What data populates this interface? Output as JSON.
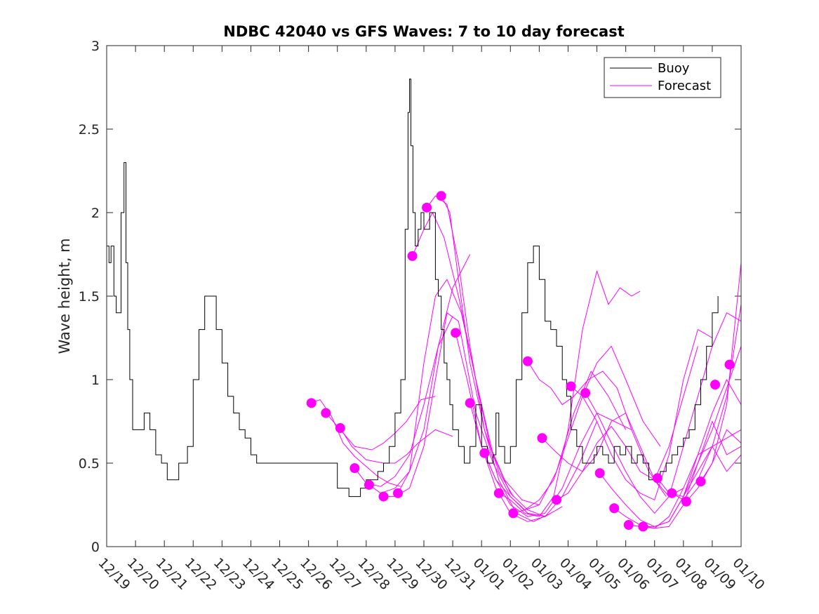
{
  "chart_data": {
    "type": "line",
    "title": "NDBC 42040 vs GFS Waves: 7 to 10 day forecast",
    "xlabel": "",
    "ylabel": "Wave height, m",
    "xlim": [
      0,
      22
    ],
    "ylim": [
      0,
      3
    ],
    "x_tick_labels": [
      "12/19",
      "12/20",
      "12/21",
      "12/22",
      "12/23",
      "12/24",
      "12/25",
      "12/26",
      "12/27",
      "12/28",
      "12/29",
      "12/30",
      "12/31",
      "01/01",
      "01/02",
      "01/03",
      "01/04",
      "01/05",
      "01/06",
      "01/07",
      "01/08",
      "01/09",
      "01/10"
    ],
    "y_ticks": [
      0,
      0.5,
      1,
      1.5,
      2,
      2.5,
      3
    ],
    "y_tick_labels": [
      "0",
      "0.5",
      "1",
      "1.5",
      "2",
      "2.5",
      "3"
    ],
    "legend": {
      "position": "top-right",
      "entries": [
        {
          "label": "Buoy",
          "color": "#000000"
        },
        {
          "label": "Forecast",
          "color": "#ff00ff"
        }
      ]
    },
    "colors": {
      "buoy": "#000000",
      "forecast": "#ff00ff",
      "axis": "#262626"
    },
    "buoy": {
      "x": [
        0,
        0.08,
        0.15,
        0.25,
        0.33,
        0.42,
        0.5,
        0.6,
        0.67,
        0.73,
        0.8,
        0.9,
        1.0,
        1.1,
        1.3,
        1.5,
        1.7,
        1.9,
        2.1,
        2.3,
        2.5,
        2.8,
        3.0,
        3.2,
        3.4,
        3.6,
        3.8,
        4.0,
        4.2,
        4.4,
        4.6,
        4.8,
        5.0,
        5.2,
        5.4,
        5.6,
        5.8,
        6.0,
        6.2,
        6.4,
        6.6,
        6.8,
        7.0,
        7.3,
        7.6,
        8.0,
        8.4,
        8.8,
        9.0,
        9.2,
        9.4,
        9.6,
        9.8,
        10.0,
        10.2,
        10.35,
        10.45,
        10.5,
        10.55,
        10.62,
        10.7,
        10.8,
        10.9,
        11.0,
        11.2,
        11.4,
        11.5,
        11.6,
        11.7,
        11.8,
        11.9,
        12.0,
        12.2,
        12.4,
        12.6,
        12.8,
        13.0,
        13.2,
        13.4,
        13.5,
        13.6,
        13.8,
        14.0,
        14.2,
        14.4,
        14.6,
        14.8,
        15.0,
        15.2,
        15.4,
        15.6,
        15.8,
        15.95,
        16.1,
        16.3,
        16.5,
        16.7,
        16.9,
        17.0,
        17.2,
        17.4,
        17.6,
        17.8,
        18.0,
        18.2,
        18.4,
        18.6,
        18.8,
        19.0,
        19.2,
        19.4,
        19.6,
        19.8,
        20.0,
        20.2,
        20.4,
        20.6,
        20.8,
        21.0,
        21.2
      ],
      "y": [
        1.8,
        1.7,
        1.8,
        1.5,
        1.4,
        1.4,
        2.0,
        2.3,
        1.7,
        1.3,
        1.0,
        0.7,
        0.7,
        0.7,
        0.8,
        0.7,
        0.55,
        0.5,
        0.4,
        0.4,
        0.5,
        0.6,
        1.0,
        1.3,
        1.5,
        1.5,
        1.3,
        1.1,
        0.9,
        0.8,
        0.7,
        0.65,
        0.55,
        0.5,
        0.5,
        0.5,
        0.5,
        0.5,
        0.5,
        0.5,
        0.5,
        0.5,
        0.5,
        0.5,
        0.5,
        0.35,
        0.3,
        0.35,
        0.4,
        0.4,
        0.45,
        0.5,
        0.6,
        0.8,
        1.0,
        1.9,
        2.6,
        2.8,
        2.4,
        2.0,
        1.8,
        1.9,
        2.0,
        1.9,
        2.0,
        1.6,
        1.5,
        1.3,
        1.1,
        1.0,
        0.85,
        0.7,
        0.6,
        0.5,
        0.6,
        0.85,
        0.6,
        0.5,
        0.55,
        0.8,
        0.6,
        0.5,
        0.6,
        1.0,
        1.4,
        1.7,
        1.8,
        1.6,
        1.35,
        1.3,
        1.2,
        1.0,
        0.9,
        0.7,
        0.6,
        0.5,
        0.5,
        0.55,
        0.6,
        0.55,
        0.5,
        0.6,
        0.55,
        0.6,
        0.5,
        0.55,
        0.5,
        0.4,
        0.4,
        0.45,
        0.5,
        0.55,
        0.6,
        0.65,
        0.7,
        0.85,
        1.0,
        1.2,
        1.4,
        1.5
      ]
    },
    "forecast_lines": [
      {
        "x": [
          7.05,
          7.4,
          7.8,
          8.2,
          8.6,
          9.0,
          9.4,
          9.8,
          10.2
        ],
        "y": [
          0.86,
          0.88,
          0.78,
          0.62,
          0.54,
          0.48,
          0.42,
          0.38,
          0.36
        ]
      },
      {
        "x": [
          7.6,
          8.0,
          8.6,
          9.2,
          9.6,
          10.0,
          10.4,
          10.9,
          11.4
        ],
        "y": [
          0.8,
          0.72,
          0.6,
          0.58,
          0.62,
          0.68,
          0.75,
          0.88,
          0.9
        ]
      },
      {
        "x": [
          8.1,
          8.5,
          9.0,
          9.6,
          10.0,
          10.4,
          10.8,
          11.4,
          12.0
        ],
        "y": [
          0.71,
          0.6,
          0.52,
          0.5,
          0.5,
          0.55,
          0.62,
          0.7,
          0.66
        ]
      },
      {
        "x": [
          8.6,
          9.0,
          9.5,
          10.0,
          10.5,
          11.0,
          11.5,
          12.0
        ],
        "y": [
          0.47,
          0.38,
          0.36,
          0.42,
          0.55,
          0.85,
          1.2,
          1.38
        ]
      },
      {
        "x": [
          9.1,
          9.5,
          10.0,
          10.5,
          11.0,
          11.5,
          12.0,
          12.6
        ],
        "y": [
          0.37,
          0.32,
          0.35,
          0.45,
          0.7,
          1.2,
          1.55,
          1.75
        ]
      },
      {
        "x": [
          9.6,
          10.0,
          10.5,
          11.0,
          11.4,
          11.8,
          12.2,
          12.8,
          13.4,
          14.0,
          14.6,
          15.2,
          15.8
        ],
        "y": [
          0.3,
          0.3,
          0.35,
          0.6,
          1.0,
          1.4,
          1.35,
          0.8,
          0.5,
          0.3,
          0.2,
          0.18,
          0.24
        ]
      },
      {
        "x": [
          10.1,
          10.5,
          11.0,
          11.4,
          11.8,
          12.3,
          12.8,
          13.4,
          14.0,
          14.6,
          15.2
        ],
        "y": [
          0.32,
          0.45,
          1.1,
          1.5,
          1.6,
          1.4,
          1.0,
          0.55,
          0.32,
          0.22,
          0.18
        ]
      },
      {
        "x": [
          10.6,
          11.0,
          11.3,
          11.7,
          12.2,
          12.8,
          13.3,
          13.8,
          14.4,
          15.0
        ],
        "y": [
          1.74,
          1.9,
          2.0,
          1.85,
          1.5,
          1.0,
          0.6,
          0.4,
          0.28,
          0.25
        ]
      },
      {
        "x": [
          11.1,
          11.4,
          11.8,
          12.2,
          12.6,
          13.1,
          13.6,
          14.1
        ],
        "y": [
          2.03,
          2.1,
          2.05,
          1.7,
          1.2,
          0.7,
          0.45,
          0.3
        ]
      },
      {
        "x": [
          11.6,
          11.9,
          12.2,
          12.6,
          13.1,
          13.6,
          14.2,
          14.8,
          15.4
        ],
        "y": [
          2.1,
          2.0,
          1.6,
          1.1,
          0.7,
          0.4,
          0.2,
          0.15,
          0.2
        ]
      },
      {
        "x": [
          12.1,
          12.5,
          13.0,
          13.5,
          14.0,
          14.6,
          15.2,
          15.8,
          16.4,
          17.0
        ],
        "y": [
          1.28,
          1.0,
          0.6,
          0.35,
          0.2,
          0.15,
          0.18,
          0.3,
          0.5,
          0.75
        ]
      },
      {
        "x": [
          12.6,
          13.0,
          13.5,
          14.0,
          14.6,
          15.2,
          15.8,
          16.4,
          17.0,
          17.6,
          18.2
        ],
        "y": [
          0.86,
          0.6,
          0.4,
          0.25,
          0.18,
          0.2,
          0.35,
          0.6,
          0.8,
          0.75,
          0.7
        ]
      },
      {
        "x": [
          13.1,
          13.5,
          14.0,
          14.5,
          15.0,
          15.6,
          16.2,
          16.8,
          17.4,
          18.0
        ],
        "y": [
          0.56,
          0.4,
          0.3,
          0.22,
          0.25,
          0.45,
          0.8,
          1.05,
          0.9,
          0.7
        ]
      },
      {
        "x": [
          13.6,
          14.0,
          14.5,
          15.0,
          15.5,
          16.0,
          16.5,
          17.0,
          17.4,
          17.8,
          18.2,
          18.5
        ],
        "y": [
          0.32,
          0.28,
          0.2,
          0.18,
          0.3,
          0.7,
          1.3,
          1.65,
          1.45,
          1.55,
          1.5,
          1.53
        ]
      },
      {
        "x": [
          14.1,
          14.5,
          15.0,
          15.5,
          16.0,
          16.5,
          17.0,
          17.5,
          18.0,
          18.6,
          19.2
        ],
        "y": [
          0.2,
          0.22,
          0.28,
          0.4,
          0.65,
          0.9,
          1.1,
          1.2,
          1.0,
          0.75,
          0.6
        ]
      },
      {
        "x": [
          14.6,
          15.0,
          15.4,
          15.8,
          16.2,
          16.7,
          17.2,
          17.7,
          18.2,
          18.8,
          19.4
        ],
        "y": [
          1.11,
          1.0,
          0.95,
          0.85,
          0.9,
          1.0,
          1.05,
          0.95,
          0.7,
          0.45,
          0.3
        ]
      },
      {
        "x": [
          15.1,
          15.5,
          16.0,
          16.5,
          17.0,
          17.5,
          18.0,
          18.5,
          19.0,
          19.5,
          20.0
        ],
        "y": [
          0.65,
          0.58,
          0.5,
          0.45,
          0.55,
          0.75,
          0.8,
          0.6,
          0.4,
          0.3,
          0.35
        ]
      },
      {
        "x": [
          15.6,
          16.0,
          16.5,
          17.0,
          17.5,
          18.0,
          18.5,
          19.0,
          19.5,
          20.0,
          20.5
        ],
        "y": [
          0.28,
          0.32,
          0.45,
          0.62,
          0.72,
          0.6,
          0.45,
          0.4,
          0.6,
          0.9,
          1.2
        ]
      },
      {
        "x": [
          16.1,
          16.5,
          17.0,
          17.5,
          18.0,
          18.5,
          19.0,
          19.5,
          20.0,
          20.5,
          21.0
        ],
        "y": [
          0.96,
          0.9,
          0.75,
          0.55,
          0.4,
          0.32,
          0.28,
          0.55,
          1.0,
          1.3,
          1.25
        ]
      },
      {
        "x": [
          16.6,
          17.0,
          17.5,
          18.0,
          18.5,
          19.0,
          19.5,
          20.0,
          20.5,
          21.0,
          21.5,
          22.0
        ],
        "y": [
          0.92,
          0.8,
          0.62,
          0.45,
          0.3,
          0.2,
          0.3,
          0.6,
          0.9,
          1.2,
          1.4,
          1.35
        ]
      },
      {
        "x": [
          17.1,
          17.5,
          18.0,
          18.5,
          19.0,
          19.5,
          20.0,
          20.5,
          21.0,
          21.5,
          22.0
        ],
        "y": [
          0.44,
          0.35,
          0.25,
          0.16,
          0.12,
          0.15,
          0.3,
          0.55,
          0.8,
          1.0,
          0.85
        ]
      },
      {
        "x": [
          17.6,
          18.0,
          18.5,
          19.0,
          19.5,
          20.0,
          20.5,
          21.0,
          21.5,
          22.0
        ],
        "y": [
          0.23,
          0.18,
          0.13,
          0.11,
          0.12,
          0.25,
          0.5,
          0.75,
          0.55,
          0.6
        ]
      },
      {
        "x": [
          18.1,
          18.5,
          19.0,
          19.5,
          20.0,
          20.5,
          21.0,
          21.5,
          22.0
        ],
        "y": [
          0.13,
          0.12,
          0.11,
          0.18,
          0.35,
          0.55,
          0.6,
          0.45,
          0.55
        ]
      },
      {
        "x": [
          18.6,
          19.0,
          19.5,
          20.0,
          20.5,
          21.0,
          21.5,
          22.0
        ],
        "y": [
          0.12,
          0.12,
          0.15,
          0.3,
          0.5,
          0.7,
          0.95,
          1.2
        ]
      },
      {
        "x": [
          19.1,
          19.5,
          20.0,
          20.5,
          21.0,
          21.5,
          22.0
        ],
        "y": [
          0.41,
          0.32,
          0.3,
          0.45,
          0.6,
          0.65,
          0.7
        ]
      },
      {
        "x": [
          19.6,
          20.0,
          20.5,
          21.0,
          21.5,
          22.0
        ],
        "y": [
          0.32,
          0.28,
          0.4,
          0.6,
          0.9,
          1.45
        ]
      },
      {
        "x": [
          20.1,
          20.5,
          21.0,
          21.5,
          22.0
        ],
        "y": [
          0.27,
          0.35,
          0.5,
          0.7,
          0.62
        ]
      },
      {
        "x": [
          20.6,
          21.0,
          21.5,
          22.0
        ],
        "y": [
          0.39,
          0.5,
          0.85,
          1.7
        ]
      }
    ],
    "forecast_markers": {
      "x": [
        7.1,
        7.6,
        8.1,
        8.6,
        9.1,
        9.6,
        10.1,
        10.6,
        11.1,
        11.6,
        12.1,
        12.6,
        13.1,
        13.6,
        14.1,
        14.6,
        15.1,
        15.6,
        16.1,
        16.6,
        17.1,
        17.6,
        18.1,
        18.6,
        19.1,
        19.6,
        20.1,
        20.6,
        21.1,
        21.6
      ],
      "y": [
        0.86,
        0.8,
        0.71,
        0.47,
        0.37,
        0.3,
        0.32,
        1.74,
        2.03,
        2.1,
        1.28,
        0.86,
        0.56,
        0.32,
        0.2,
        1.11,
        0.65,
        0.28,
        0.96,
        0.92,
        0.44,
        0.23,
        0.13,
        0.12,
        0.41,
        0.32,
        0.27,
        0.39,
        0.97,
        1.09
      ]
    }
  }
}
